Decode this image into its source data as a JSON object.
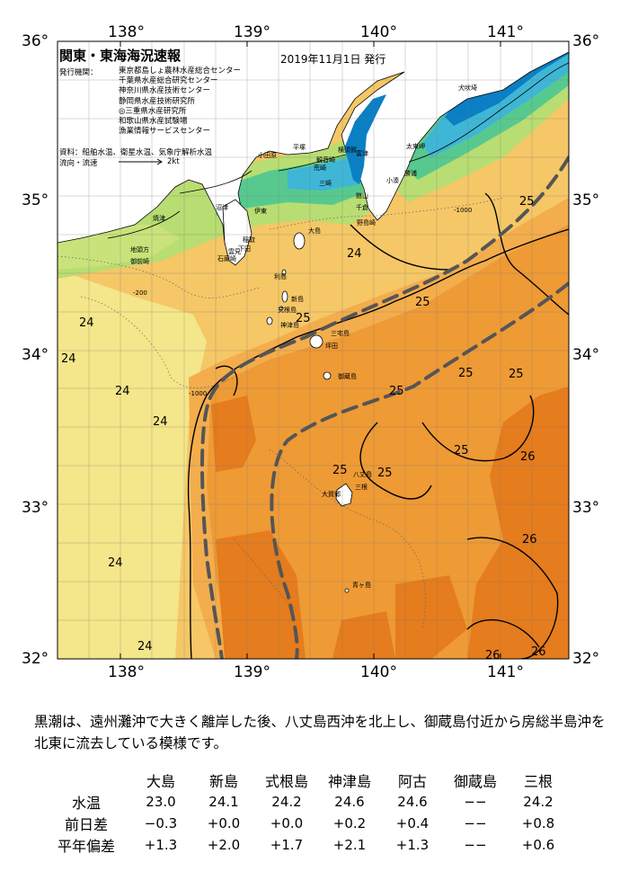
{
  "header": {
    "title": "関東・東海海況速報",
    "issued": "2019年11月1日 発行",
    "org_label": "発行機関：",
    "orgs": [
      "東京都島しょ農林水産総合センター",
      "千葉県水産総合研究センター",
      "神奈川県水産技術センター",
      "静岡県水産技術研究所",
      "◎三重県水産研究所",
      "和歌山県水産試験場",
      "漁業情報サービスセンター"
    ],
    "sources": "資料：船舶水温、衛星水温、気象庁解析水温",
    "flow_label": "流向・流速",
    "flow_scale": "2kt"
  },
  "axes": {
    "lon_labels": [
      "138°",
      "139°",
      "140°",
      "141°"
    ],
    "lat_labels": [
      "36°",
      "35°",
      "34°",
      "33°",
      "32°"
    ],
    "lon_values": [
      138,
      139,
      140,
      141
    ],
    "lat_values": [
      36,
      35,
      34,
      33,
      32
    ],
    "lon_range": [
      137.5,
      141.5
    ],
    "lat_range": [
      32,
      36
    ]
  },
  "places": [
    "焼津",
    "御前崎",
    "地頭方",
    "沼津",
    "稲取",
    "下田",
    "雲見",
    "石廊崎",
    "伊東",
    "小田原",
    "平塚",
    "横須賀",
    "観音崎",
    "荒崎",
    "富津",
    "三崎",
    "館山",
    "千倉",
    "野島崎",
    "小湊",
    "勝浦",
    "太東岬",
    "犬吠埼",
    "大島",
    "利島",
    "新島",
    "式根島",
    "神津島",
    "三宅島",
    "坪田",
    "御蔵島",
    "八丈島",
    "三根",
    "大賀郷",
    "青ヶ島"
  ],
  "contour_labels": {
    "temperature": [
      "24",
      "24",
      "24",
      "24",
      "24",
      "24",
      "25",
      "25",
      "25",
      "25",
      "25",
      "25",
      "25",
      "25",
      "25",
      "26",
      "26",
      "26",
      "26"
    ],
    "depth": [
      "-1000",
      "-200",
      "-1000"
    ]
  },
  "colors": {
    "t_lt20": "#0a7fc4",
    "t_20": "#3fb6d6",
    "t_21": "#57c98f",
    "t_22": "#b8dd72",
    "t_23": "#f4e68a",
    "t_24": "#f5c766",
    "t_24_5": "#f3ad4c",
    "t_25": "#ee9a35",
    "t_26": "#e57c1d",
    "land": "#ffffff",
    "kuroshio_axis": "#555555"
  },
  "summary": "黒潮は、遠州灘沖で大きく離岸した後、八丈島西沖を北上し、御蔵島付近から房総半島沖を北東に流去している模様です。",
  "table": {
    "stations": [
      "大島",
      "新島",
      "式根島",
      "神津島",
      "阿古",
      "御蔵島",
      "三根"
    ],
    "rows": [
      {
        "label": "水温",
        "values": [
          "23.0",
          "24.1",
          "24.2",
          "24.6",
          "24.6",
          "−−",
          "24.2"
        ]
      },
      {
        "label": "前日差",
        "values": [
          "−0.3",
          "+0.0",
          "+0.0",
          "+0.2",
          "+0.4",
          "−−",
          "+0.8"
        ]
      },
      {
        "label": "平年偏差",
        "values": [
          "+1.3",
          "+2.0",
          "+1.7",
          "+2.1",
          "+1.3",
          "−−",
          "+0.6"
        ]
      }
    ]
  }
}
